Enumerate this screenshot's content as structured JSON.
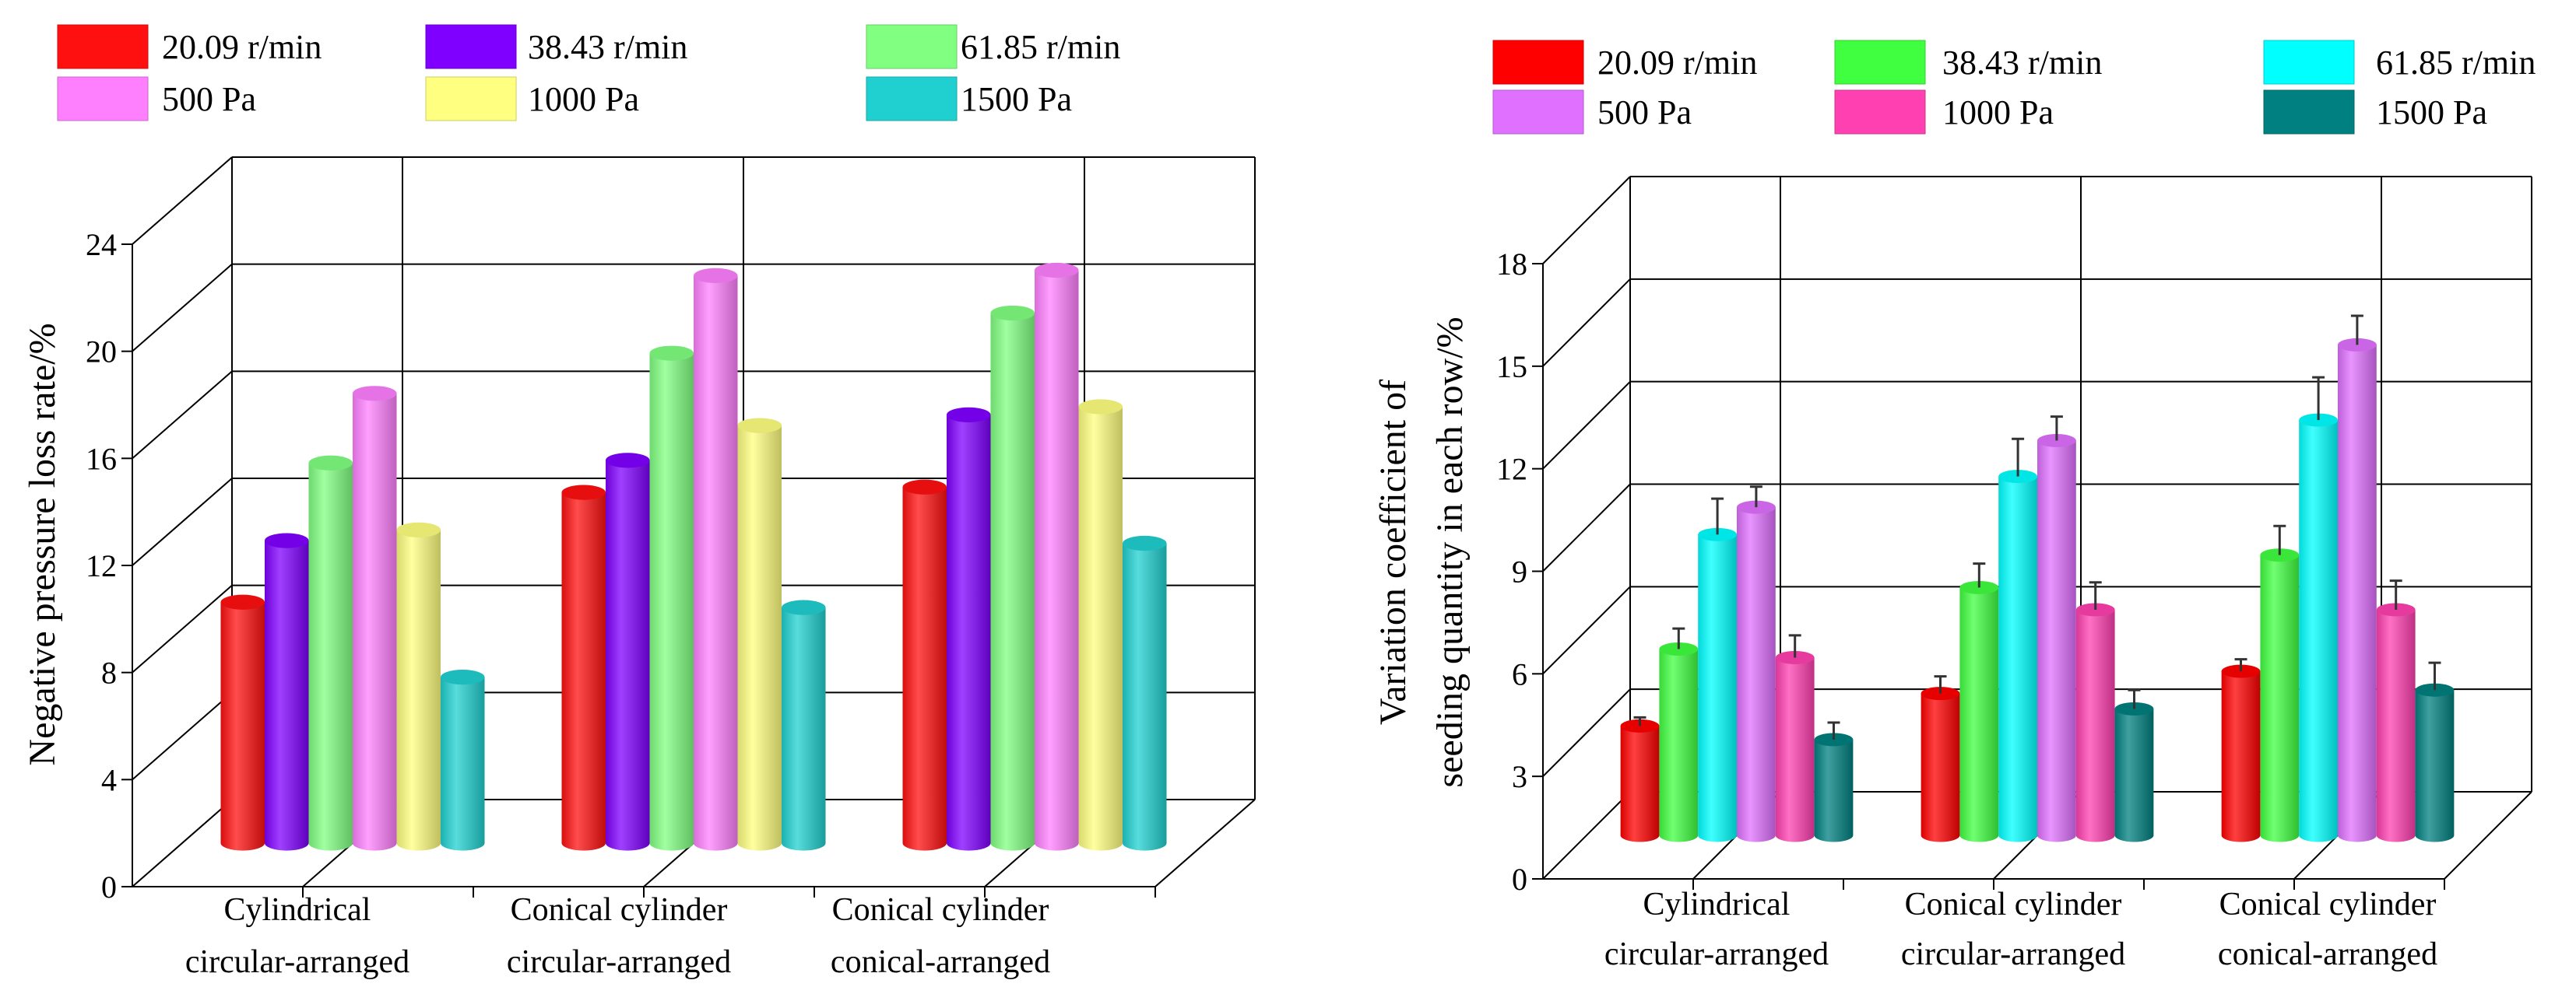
{
  "chart_data": [
    {
      "type": "bar",
      "style": "3d-cylinder",
      "title": "",
      "ylabel": "Negative pressure loss rate/%",
      "xlabel": "",
      "ylim": [
        0,
        24
      ],
      "yticks": [
        0,
        4,
        8,
        12,
        16,
        20,
        24
      ],
      "grid": true,
      "legend_placement": "top",
      "categories": [
        [
          "Cylindrical",
          "circular-arranged"
        ],
        [
          "Conical cylinder",
          "circular-arranged"
        ],
        [
          "Conical cylinder",
          "conical-arranged"
        ]
      ],
      "series": [
        {
          "name": "20.09 r/min",
          "color": "#ff1010",
          "values": [
            9.0,
            13.1,
            13.3
          ]
        },
        {
          "name": "38.43 r/min",
          "color": "#8000ff",
          "values": [
            11.3,
            14.3,
            16.0
          ]
        },
        {
          "name": "61.85 r/min",
          "color": "#80ff80",
          "values": [
            14.2,
            18.3,
            19.8
          ]
        },
        {
          "name": "500 Pa",
          "color": "#ff80ff",
          "values": [
            16.8,
            21.2,
            21.4
          ]
        },
        {
          "name": "1000 Pa",
          "color": "#ffff80",
          "values": [
            11.7,
            15.6,
            16.3
          ]
        },
        {
          "name": "1500 Pa",
          "color": "#20d0d0",
          "values": [
            6.2,
            8.8,
            11.2
          ]
        }
      ]
    },
    {
      "type": "bar",
      "style": "3d-cylinder-with-error-bars",
      "title": "",
      "ylabel": [
        "Variation coefficient of",
        "seeding quantity in each row/%"
      ],
      "xlabel": "",
      "ylim": [
        0,
        18
      ],
      "yticks": [
        0,
        3,
        6,
        9,
        12,
        15,
        18
      ],
      "grid": true,
      "legend_placement": "top",
      "categories": [
        [
          "Cylindrical",
          "circular-arranged"
        ],
        [
          "Conical cylinder",
          "circular-arranged"
        ],
        [
          "Conical cylinder",
          "conical-arranged"
        ]
      ],
      "series": [
        {
          "name": "20.09 r/min",
          "color": "#ff0000",
          "values": [
            3.2,
            4.15,
            4.8
          ],
          "errors": [
            0.25,
            0.5,
            0.35
          ]
        },
        {
          "name": "38.43 r/min",
          "color": "#40ff40",
          "values": [
            5.45,
            7.25,
            8.2
          ],
          "errors": [
            0.6,
            0.7,
            0.85
          ]
        },
        {
          "name": "61.85 r/min",
          "color": "#00ffff",
          "values": [
            8.8,
            10.5,
            12.15
          ],
          "errors": [
            1.05,
            1.1,
            1.25
          ]
        },
        {
          "name": "500 Pa",
          "color": "#e070ff",
          "values": [
            9.6,
            11.55,
            14.35
          ],
          "errors": [
            0.6,
            0.7,
            0.85
          ]
        },
        {
          "name": "1000 Pa",
          "color": "#ff40b0",
          "values": [
            5.2,
            6.6,
            6.6
          ],
          "errors": [
            0.65,
            0.8,
            0.85
          ]
        },
        {
          "name": "1500 Pa",
          "color": "#008080",
          "values": [
            2.8,
            3.7,
            4.25
          ],
          "errors": [
            0.5,
            0.55,
            0.8
          ]
        }
      ]
    }
  ]
}
